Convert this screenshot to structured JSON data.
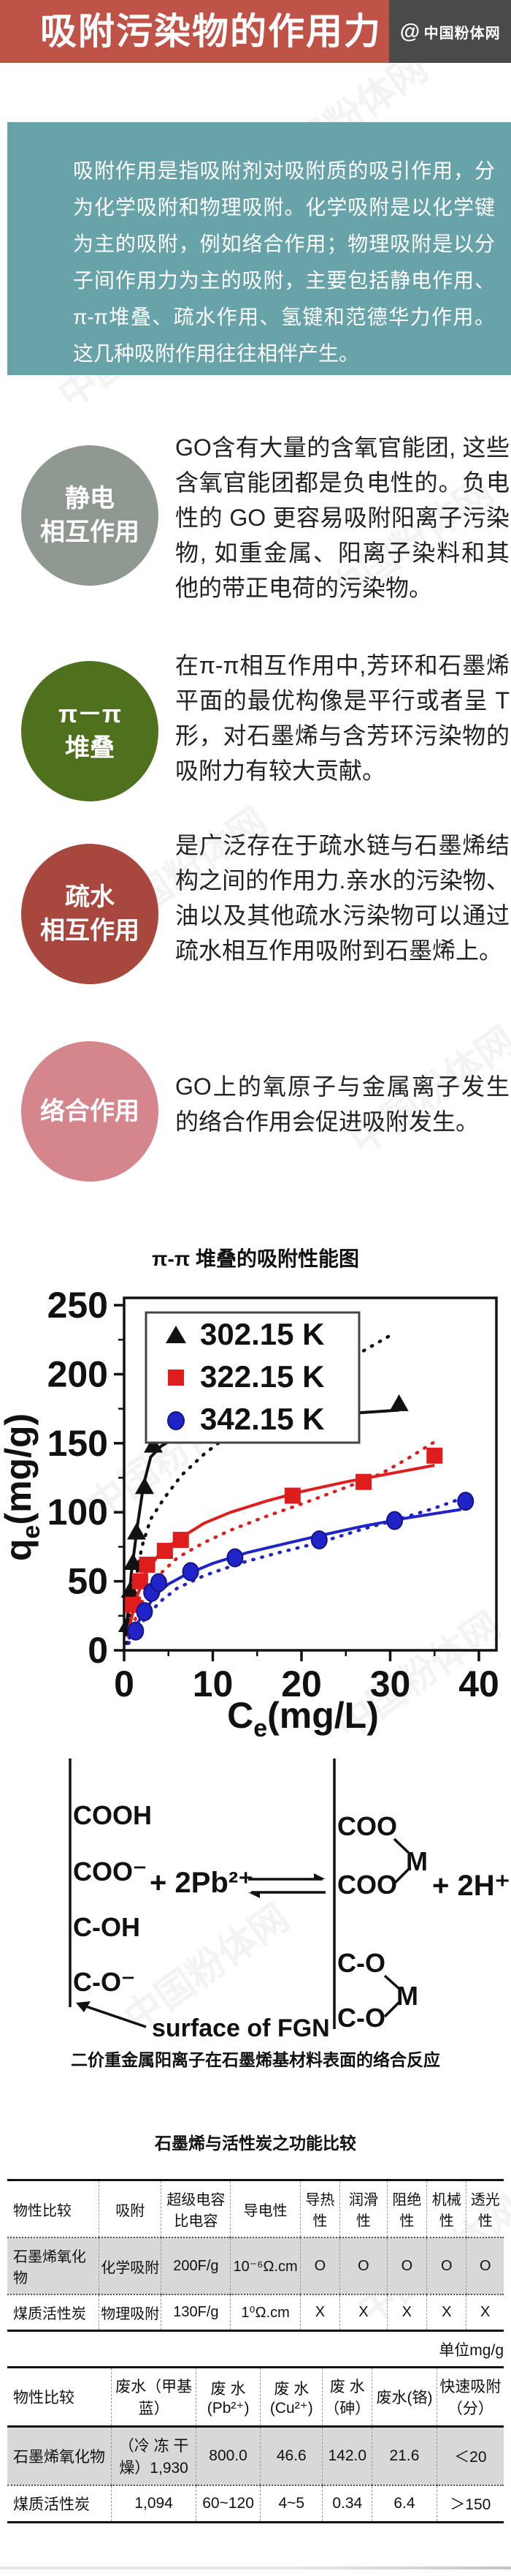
{
  "header": {
    "title": "吸附污染物的作用力",
    "logo_at": "@",
    "logo_text": "中国粉体网"
  },
  "watermark_text": "中国粉体网",
  "intro": {
    "text": "吸附作用是指吸附剂对吸附质的吸引作用，分为化学吸附和物理吸附。化学吸附是以化学键为主的吸附，例如络合作用；物理吸附是以分子间作用力为主的吸附，主要包括静电作用、π-π堆叠、疏水作用、氢键和范德华力作用。这几种吸附作用往往相伴产生。"
  },
  "sections": [
    {
      "badge_line1": "静电",
      "badge_line2": "相互作用",
      "color": "#8f9992",
      "text": "GO含有大量的含氧官能团, 这些含氧官能团都是负电性的。负电性的 GO 更容易吸附阳离子污染物, 如重金属、阳离子染料和其他的带正电荷的污染物。"
    },
    {
      "badge_line1": "π－π",
      "badge_line2": "堆叠",
      "color": "#4f701d",
      "text": "在π-π相互作用中,芳环和石墨烯平面的最优构像是平行或者呈 T 形，对石墨烯与含芳环污染物的吸附力有较大贡献。"
    },
    {
      "badge_line1": "疏水",
      "badge_line2": "相互作用",
      "color": "#a7473d",
      "text": "是广泛存在于疏水链与石墨烯结构之间的作用力.亲水的污染物、油以及其他疏水污染物可以通过疏水相互作用吸附到石墨烯上。"
    },
    {
      "badge_line1": "络合作用",
      "badge_line2": "",
      "color": "#d5868d",
      "text": "GO上的氧原子与金属离子发生的络合作用会促进吸附发生。"
    }
  ],
  "chart_data": {
    "type": "scatter",
    "title": "π-π 堆叠的吸附性能图",
    "xlabel_parts": [
      "C",
      "e",
      "(mg/L)"
    ],
    "ylabel_parts": [
      "q",
      "e",
      "(mg/g)"
    ],
    "xlim": [
      0,
      40
    ],
    "ylim": [
      0,
      250
    ],
    "xticks": [
      0,
      10,
      20,
      30,
      40
    ],
    "yticks": [
      0,
      50,
      100,
      150,
      200,
      250
    ],
    "grid": false,
    "legend_position": "top-left",
    "series": [
      {
        "name": "302.15 K",
        "marker": "triangle",
        "color": "#111111",
        "points": [
          [
            0.4,
            18
          ],
          [
            0.7,
            43
          ],
          [
            1.0,
            63
          ],
          [
            1.4,
            85
          ],
          [
            2.3,
            118
          ],
          [
            3.3,
            148
          ],
          [
            11,
            160
          ],
          [
            21,
            164
          ],
          [
            31,
            178
          ]
        ],
        "fit_line": [
          [
            0.2,
            10
          ],
          [
            0.8,
            55
          ],
          [
            1.5,
            90
          ],
          [
            2.2,
            120
          ],
          [
            3,
            140
          ],
          [
            4.2,
            148
          ],
          [
            6,
            155
          ],
          [
            9,
            160
          ],
          [
            13,
            164
          ],
          [
            18,
            167
          ],
          [
            24,
            171
          ],
          [
            31,
            174
          ]
        ],
        "dotted_line": [
          [
            0.3,
            5
          ],
          [
            1,
            40
          ],
          [
            2,
            75
          ],
          [
            3,
            95
          ],
          [
            4.5,
            110
          ],
          [
            6.5,
            127
          ],
          [
            9,
            142
          ],
          [
            12,
            157
          ],
          [
            15,
            170
          ],
          [
            18,
            183
          ],
          [
            21,
            196
          ],
          [
            24,
            207
          ],
          [
            27,
            217
          ],
          [
            30,
            228
          ]
        ]
      },
      {
        "name": "322.15 K",
        "marker": "square",
        "color": "#e01d1d",
        "points": [
          [
            1.0,
            33
          ],
          [
            1.8,
            50
          ],
          [
            2.6,
            62
          ],
          [
            4.6,
            72
          ],
          [
            6.4,
            80
          ],
          [
            19,
            112
          ],
          [
            27,
            122
          ],
          [
            35,
            141
          ]
        ],
        "fit_line": [
          [
            0.5,
            15
          ],
          [
            1.5,
            40
          ],
          [
            2.5,
            57
          ],
          [
            4,
            70
          ],
          [
            6,
            80
          ],
          [
            9,
            92
          ],
          [
            12,
            100
          ],
          [
            16,
            108
          ],
          [
            20,
            115
          ],
          [
            25,
            122
          ],
          [
            30,
            128
          ],
          [
            35,
            134
          ]
        ],
        "dotted_line": [
          [
            0.5,
            10
          ],
          [
            2,
            35
          ],
          [
            4,
            55
          ],
          [
            6,
            67
          ],
          [
            9,
            78
          ],
          [
            12,
            87
          ],
          [
            16,
            97
          ],
          [
            20,
            106
          ],
          [
            25,
            118
          ],
          [
            29,
            128
          ],
          [
            32,
            139
          ],
          [
            35,
            151
          ]
        ]
      },
      {
        "name": "342.15 K",
        "marker": "circle",
        "color": "#2024c8",
        "points": [
          [
            1.3,
            14
          ],
          [
            2.3,
            28
          ],
          [
            3.1,
            42
          ],
          [
            3.9,
            49
          ],
          [
            7.5,
            57
          ],
          [
            12.5,
            67
          ],
          [
            22,
            80
          ],
          [
            30.5,
            94
          ],
          [
            38.5,
            108
          ]
        ],
        "fit_line": [
          [
            0.5,
            8
          ],
          [
            2,
            25
          ],
          [
            3.5,
            40
          ],
          [
            5,
            48
          ],
          [
            7,
            55
          ],
          [
            10,
            63
          ],
          [
            14,
            71
          ],
          [
            18,
            77
          ],
          [
            22,
            83
          ],
          [
            27,
            90
          ],
          [
            32,
            96
          ],
          [
            38,
            102
          ]
        ],
        "dotted_line": [
          [
            0.5,
            5
          ],
          [
            2,
            20
          ],
          [
            4,
            35
          ],
          [
            6,
            45
          ],
          [
            9,
            54
          ],
          [
            13,
            63
          ],
          [
            17,
            70
          ],
          [
            22,
            78
          ],
          [
            27,
            88
          ],
          [
            31,
            95
          ],
          [
            35,
            103
          ],
          [
            38.5,
            111
          ]
        ]
      }
    ]
  },
  "reaction": {
    "left_groups": [
      "COOH",
      "COO⁻",
      "C-OH",
      "C-O⁻"
    ],
    "surface_label": "surface of FGN",
    "reactant": "+  2Pb²⁺",
    "right_top_groups": [
      "COO",
      "COO"
    ],
    "right_bottom_groups": [
      "C-O",
      "C-O"
    ],
    "metal": "M",
    "product": "+  2H⁺"
  },
  "reaction_caption": "二价重金属阳离子在石墨烯基材料表面的络合反应",
  "table_section_title": "石墨烯与活性炭之功能比较",
  "table1": {
    "headers": [
      "物性比较",
      "吸附",
      "超级电容\n比电容",
      "导电性",
      "导热\n性",
      "润滑性",
      "阻绝\n性",
      "机械性",
      "透光性"
    ],
    "rows": [
      [
        "石墨烯氧化物",
        "化学吸附",
        "200F/g",
        "10⁻⁶Ω.cm",
        "O",
        "O",
        "O",
        "O",
        "O"
      ],
      [
        "煤质活性炭",
        "物理吸附",
        "130F/g",
        "1⁰Ω.cm",
        "X",
        "X",
        "X",
        "X",
        "X"
      ]
    ]
  },
  "unit_note": "单位mg/g",
  "table2": {
    "headers": [
      "物性比较",
      "废水（甲基\n蓝）",
      "废    水\n(Pb²⁺)",
      "废    水\n(Cu²⁺)",
      "废  水\n（砷）",
      "废水(铬)",
      "快速吸附\n（分）"
    ],
    "rows": [
      [
        "石墨烯氧化物",
        "（冷 冻 干\n燥）1,930",
        "800.0",
        "46.6",
        "142.0",
        "21.6",
        "＜20"
      ],
      [
        "煤质活性炭",
        "1,094",
        "60~120",
        "4~5",
        "0.34",
        "6.4",
        "＞150"
      ]
    ]
  }
}
